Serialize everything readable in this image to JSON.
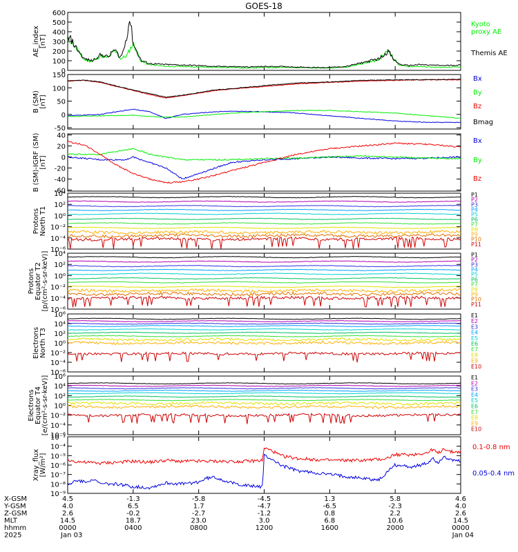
{
  "title": "GOES-18",
  "colors": {
    "black": "#000000",
    "green": "#00ee00",
    "blue": "#0000dd",
    "red": "#ee0000",
    "P": [
      "#000000",
      "#b000b0",
      "#3030e0",
      "#00a0ff",
      "#00d0d0",
      "#00c060",
      "#30e030",
      "#e0e000",
      "#ffb000",
      "#e07000",
      "#d00000"
    ],
    "E": [
      "#000000",
      "#b000b0",
      "#3030e0",
      "#00a0ff",
      "#00d0d0",
      "#00c060",
      "#30e030",
      "#e0e000",
      "#ffb000",
      "#cc0000"
    ]
  },
  "chart_data": [
    {
      "type": "line",
      "id": "ae",
      "ylabel": [
        "AE_index",
        "[nT]"
      ],
      "ylim": [
        0,
        600
      ],
      "yticks": [
        "0",
        "100",
        "200",
        "300",
        "400",
        "500",
        "600"
      ],
      "series": [
        {
          "name": "Kyoto proxy AE",
          "label_lines": [
            "Kyoto",
            "proxy AE"
          ],
          "color": "green",
          "x": [
            0,
            0.2,
            0.5,
            1,
            1.5,
            2,
            2.5,
            2.8,
            3,
            3.2,
            3.6,
            4,
            4.5,
            5,
            6,
            7,
            8,
            9,
            10,
            11,
            12,
            13,
            14,
            15,
            16,
            17,
            18,
            19,
            19.6,
            19.9,
            20.3,
            20.8,
            21.5,
            22,
            23,
            24
          ],
          "y": [
            300,
            310,
            230,
            110,
            90,
            150,
            130,
            200,
            180,
            120,
            150,
            280,
            90,
            60,
            40,
            40,
            35,
            30,
            30,
            25,
            30,
            30,
            30,
            25,
            25,
            35,
            70,
            110,
            210,
            120,
            50,
            40,
            40,
            35,
            30,
            35
          ]
        },
        {
          "name": "Themis AE",
          "label_lines": [
            "Themis AE"
          ],
          "color": "black",
          "x": [
            0,
            0.2,
            0.5,
            1,
            1.5,
            2,
            2.5,
            2.8,
            3,
            3.2,
            3.4,
            3.6,
            3.8,
            4,
            4.2,
            4.5,
            5,
            6,
            7,
            8,
            9,
            10,
            11,
            12,
            13,
            14,
            15,
            16,
            17,
            18,
            19,
            19.6,
            19.9,
            20.3,
            20.8,
            21.5,
            22,
            23,
            24
          ],
          "y": [
            330,
            320,
            240,
            120,
            100,
            160,
            140,
            210,
            190,
            130,
            200,
            350,
            540,
            280,
            200,
            100,
            70,
            60,
            55,
            50,
            40,
            40,
            35,
            40,
            40,
            35,
            30,
            30,
            40,
            80,
            120,
            200,
            110,
            60,
            50,
            60,
            55,
            50,
            55
          ]
        }
      ]
    },
    {
      "type": "line",
      "id": "bsm",
      "ylabel": [
        "B (SM)",
        "[nT]"
      ],
      "ylim": [
        -55,
        150
      ],
      "yticks": [
        "-50",
        "0",
        "50",
        "100",
        "150"
      ],
      "yticks_values": [
        -50,
        0,
        50,
        100,
        150
      ],
      "series": [
        {
          "name": "Bx",
          "color": "blue",
          "x": [
            0,
            2,
            3.5,
            4,
            5,
            6,
            7,
            8,
            9,
            10,
            12,
            14,
            16,
            18,
            20,
            22,
            24
          ],
          "y": [
            -5,
            0,
            15,
            20,
            10,
            -15,
            0,
            5,
            10,
            12,
            10,
            5,
            -5,
            -15,
            -25,
            -30,
            -30
          ]
        },
        {
          "name": "By",
          "color": "green",
          "x": [
            0,
            2,
            4,
            5,
            6,
            7,
            8,
            10,
            12,
            14,
            16,
            18,
            20,
            22,
            24
          ],
          "y": [
            -8,
            -5,
            -3,
            -8,
            -10,
            -10,
            -5,
            5,
            10,
            15,
            15,
            10,
            5,
            -5,
            -15
          ]
        },
        {
          "name": "Bz",
          "color": "red",
          "x": [
            0,
            1,
            2,
            3,
            4,
            5,
            6,
            7,
            8,
            9,
            10,
            12,
            14,
            16,
            18,
            20,
            22,
            24
          ],
          "y": [
            125,
            128,
            120,
            105,
            90,
            75,
            62,
            70,
            80,
            90,
            95,
            105,
            115,
            120,
            125,
            128,
            130,
            130
          ]
        },
        {
          "name": "Bmag",
          "color": "black",
          "x": [
            0,
            1,
            2,
            3,
            4,
            5,
            6,
            7,
            8,
            9,
            10,
            12,
            14,
            16,
            18,
            20,
            22,
            24
          ],
          "y": [
            126,
            129,
            122,
            106,
            92,
            78,
            65,
            72,
            82,
            92,
            97,
            108,
            118,
            122,
            128,
            130,
            131,
            132
          ]
        }
      ]
    },
    {
      "type": "line",
      "id": "bigrf",
      "ylabel": [
        "B (SM)-IGRF (SM)",
        "[nT]"
      ],
      "ylim": [
        -62,
        42
      ],
      "yticks": [
        "-60",
        "-40",
        "-20",
        "0",
        "20",
        "40"
      ],
      "yticks_values": [
        -60,
        -40,
        -20,
        0,
        20,
        40
      ],
      "series": [
        {
          "name": "Bx",
          "color": "blue",
          "x": [
            0,
            2,
            3.5,
            4,
            5,
            6,
            7,
            8,
            9,
            10,
            12,
            14,
            16,
            18,
            20,
            22,
            24
          ],
          "y": [
            0,
            -5,
            -5,
            0,
            -10,
            -20,
            -40,
            -30,
            -20,
            -10,
            -5,
            -3,
            0,
            -2,
            -3,
            -2,
            0
          ]
        },
        {
          "name": "By",
          "color": "green",
          "x": [
            0,
            1,
            2,
            3,
            4,
            5,
            6,
            7,
            8,
            10,
            12,
            14,
            16,
            18,
            20,
            22,
            24
          ],
          "y": [
            5,
            5,
            5,
            10,
            15,
            5,
            0,
            -5,
            -5,
            -5,
            -3,
            -2,
            0,
            2,
            0,
            -2,
            -3
          ]
        },
        {
          "name": "Bz",
          "color": "red",
          "x": [
            0,
            1,
            2,
            3,
            4,
            5,
            6,
            7,
            8,
            9,
            10,
            12,
            14,
            16,
            18,
            20,
            22,
            24
          ],
          "y": [
            28,
            22,
            5,
            -15,
            -30,
            -40,
            -47,
            -45,
            -40,
            -33,
            -25,
            -10,
            5,
            15,
            20,
            25,
            23,
            18
          ]
        }
      ]
    },
    {
      "type": "line",
      "id": "pnorth",
      "log": true,
      "ylabel": [
        "Protons",
        "North T1"
      ],
      "ylim_exp": [
        -6,
        4
      ],
      "yticks": [
        "10⁴",
        "10²",
        "10⁰",
        "10⁻²",
        "10⁻⁴",
        "10⁻⁶"
      ],
      "yticks_exp": [
        4,
        2,
        0,
        -2,
        -4,
        -6
      ],
      "series_names": [
        "P1",
        "P2",
        "P3",
        "P4",
        "P5",
        "P6",
        "P7",
        "P8",
        "P9",
        "P10",
        "P11"
      ],
      "levels_exp": [
        3.3,
        2.5,
        1.7,
        1.0,
        0.3,
        -0.6,
        -1.4,
        -2.2,
        -3.0,
        -3.6,
        -4.2
      ]
    },
    {
      "type": "line",
      "id": "pequator",
      "log": true,
      "ylabel": [
        "Protons",
        "Equator T2",
        "[p/(cm²-s-sr-keV)]"
      ],
      "ylim_exp": [
        -6,
        4
      ],
      "yticks": [
        "10⁴",
        "10²",
        "10⁰",
        "10⁻²",
        "10⁻⁴",
        "10⁻⁶"
      ],
      "yticks_exp": [
        4,
        2,
        0,
        -2,
        -4,
        -6
      ],
      "series_names": [
        "P1",
        "P2",
        "P3",
        "P4",
        "P5",
        "P6",
        "P7",
        "P8",
        "P9",
        "P10",
        "P11"
      ],
      "levels_exp": [
        3.3,
        2.5,
        1.7,
        1.0,
        0.3,
        -0.5,
        -1.2,
        -2.0,
        -2.7,
        -3.3,
        -4.0
      ]
    },
    {
      "type": "line",
      "id": "enorth",
      "log": true,
      "ylabel": [
        "Electrons",
        "North T3"
      ],
      "ylim_exp": [
        -6,
        6
      ],
      "yticks": [
        "10⁶",
        "10⁴",
        "10²",
        "10⁰",
        "10⁻²",
        "10⁻⁴",
        "10⁻⁶"
      ],
      "yticks_exp": [
        6,
        4,
        2,
        0,
        -2,
        -4,
        -6
      ],
      "series_names": [
        "E1",
        "E2",
        "E3",
        "E4",
        "E5",
        "E6",
        "E7",
        "E8",
        "E9",
        "E10"
      ],
      "levels_exp": [
        5.0,
        4.5,
        4.0,
        3.5,
        2.8,
        2.1,
        1.4,
        0.7,
        0,
        -2.2
      ]
    },
    {
      "type": "line",
      "id": "eequator",
      "log": true,
      "ylabel": [
        "Electrons",
        "Equator T4",
        "[e/(cm²-s-sr-keV)]"
      ],
      "ylim_exp": [
        -6,
        6
      ],
      "yticks": [
        "10⁶",
        "10⁴",
        "10²",
        "10⁰",
        "10⁻²",
        "10⁻⁴",
        "10⁻⁶"
      ],
      "yticks_exp": [
        6,
        4,
        2,
        0,
        -2,
        -4,
        -6
      ],
      "series_names": [
        "E1",
        "E2",
        "E3",
        "E4",
        "E5",
        "E6",
        "E7",
        "E8",
        "E9",
        "E10"
      ],
      "levels_exp": [
        4.5,
        4.0,
        3.5,
        3.0,
        2.5,
        1.8,
        1.1,
        0.4,
        -0.3,
        -2.0
      ]
    },
    {
      "type": "line",
      "id": "xray",
      "log": true,
      "ylabel": [
        "Xray_flux",
        "[W/m²]"
      ],
      "ylim_exp": [
        -9,
        -3
      ],
      "yticks": [
        "10⁻³",
        "10⁻⁴",
        "10⁻⁵",
        "10⁻⁶",
        "10⁻⁷",
        "10⁻⁸",
        "10⁻⁹"
      ],
      "yticks_exp": [
        -3,
        -4,
        -5,
        -6,
        -7,
        -8,
        -9
      ],
      "series": [
        {
          "name": "0.1-0.8 nm",
          "color": "red",
          "x": [
            0,
            1,
            2,
            3,
            4,
            5,
            6,
            7,
            8,
            9,
            10,
            11,
            11.9,
            12,
            12.5,
            13,
            14,
            16,
            18,
            19,
            19.5,
            19.8,
            20,
            21,
            22,
            22.3,
            22.6,
            23,
            23.3,
            24
          ],
          "y_exp": [
            -5.5,
            -5.7,
            -5.8,
            -5.7,
            -5.6,
            -5.7,
            -5.5,
            -5.6,
            -5.6,
            -5.6,
            -5.6,
            -5.6,
            -5.5,
            -4.2,
            -4.5,
            -5,
            -5.3,
            -5.5,
            -5.5,
            -5.4,
            -5.3,
            -5.0,
            -4.9,
            -4.9,
            -4.7,
            -4.3,
            -4.8,
            -4.2,
            -4.6,
            -4.6
          ]
        },
        {
          "name": "0.05-0.4 nm",
          "color": "blue",
          "x": [
            0,
            0.5,
            1,
            1.5,
            2,
            3,
            4,
            5,
            6,
            7,
            8,
            8.5,
            9,
            10,
            11,
            11.9,
            12,
            12.5,
            13,
            14,
            16,
            18,
            19,
            19.5,
            19.8,
            20,
            21,
            22,
            22.3,
            22.6,
            23,
            23.3,
            24
          ],
          "y_exp": [
            -8.2,
            -7.6,
            -7.8,
            -7.5,
            -8.0,
            -8.0,
            -8.3,
            -8.4,
            -7.9,
            -8.0,
            -7.8,
            -7.4,
            -7.3,
            -7.9,
            -8.2,
            -8.3,
            -5.0,
            -5.4,
            -6.0,
            -6.6,
            -7.0,
            -7.4,
            -7.6,
            -6.8,
            -6.2,
            -6.0,
            -6.2,
            -5.8,
            -5.2,
            -5.8,
            -5.0,
            -5.5,
            -5.6
          ]
        }
      ]
    }
  ],
  "x_axis": {
    "row_labels": [
      "X-GSM",
      "Y-GSM",
      "Z-GSM",
      "MLT",
      "hhmm",
      "2025"
    ],
    "columns": [
      {
        "values": [
          "4.5",
          "4.0",
          "2.6",
          "14.5",
          "0000",
          "Jan 03"
        ]
      },
      {
        "values": [
          "-1.3",
          "6.5",
          "-0.2",
          "18.7",
          "0400",
          ""
        ]
      },
      {
        "values": [
          "-5.8",
          "1.7",
          "-2.7",
          "23.0",
          "0800",
          ""
        ]
      },
      {
        "values": [
          "-4.5",
          "-4.7",
          "-1.2",
          "3.0",
          "1200",
          ""
        ]
      },
      {
        "values": [
          "1.3",
          "-6.5",
          "0.8",
          "6.8",
          "1600",
          ""
        ]
      },
      {
        "values": [
          "5.8",
          "-2.3",
          "2.2",
          "10.6",
          "2000",
          ""
        ]
      },
      {
        "values": [
          "4.6",
          "4.0",
          "2.6",
          "14.5",
          "0000",
          "Jan 04"
        ]
      }
    ]
  }
}
